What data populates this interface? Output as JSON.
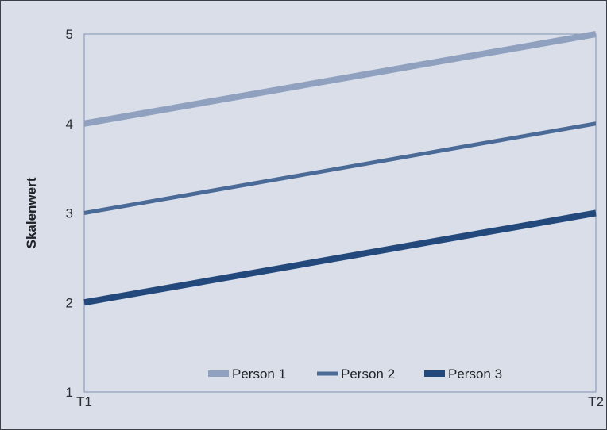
{
  "chart_data": {
    "type": "line",
    "title": "",
    "xlabel": "",
    "ylabel": "Skalenwert",
    "x": [
      "T1",
      "T2"
    ],
    "ylim": [
      1,
      5
    ],
    "yticks": [
      1,
      2,
      3,
      4,
      5
    ],
    "grid": false,
    "legend_position": "bottom-inside",
    "series": [
      {
        "name": "Person 1",
        "values": [
          4,
          5
        ],
        "color": "#8fa1bf"
      },
      {
        "name": "Person 2",
        "values": [
          3,
          4
        ],
        "color": "#4a6a98"
      },
      {
        "name": "Person 3",
        "values": [
          2,
          3
        ],
        "color": "#23497c"
      }
    ]
  }
}
